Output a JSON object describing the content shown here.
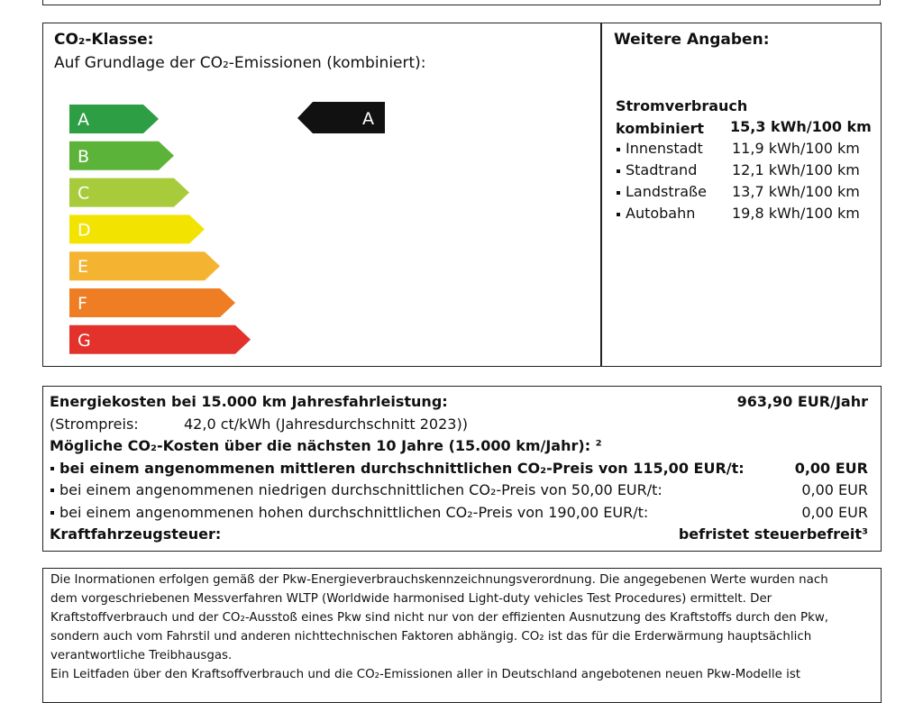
{
  "co2_class": {
    "title": "CO₂-Klasse:",
    "subtitle": "Auf Grundlage der CO₂-Emissionen (kombiniert):",
    "classes": [
      {
        "label": "A",
        "color": "#2e9e44"
      },
      {
        "label": "B",
        "color": "#5cb33a"
      },
      {
        "label": "C",
        "color": "#a8cb3b"
      },
      {
        "label": "D",
        "color": "#f2e300"
      },
      {
        "label": "E",
        "color": "#f4b431"
      },
      {
        "label": "F",
        "color": "#ee7d23"
      },
      {
        "label": "G",
        "color": "#e3312b"
      }
    ],
    "current_class": "A"
  },
  "further_info": {
    "title": "Weitere Angaben:",
    "consumption_title": "Stromverbrauch",
    "combined": {
      "label": "kombiniert",
      "value": "15,3 kWh/100 km"
    },
    "rows": [
      {
        "label": "Innenstadt",
        "value": "11,9 kWh/100 km"
      },
      {
        "label": "Stadtrand",
        "value": "12,1 kWh/100 km"
      },
      {
        "label": "Landstraße",
        "value": "13,7 kWh/100 km"
      },
      {
        "label": "Autobahn",
        "value": "19,8 kWh/100 km"
      }
    ]
  },
  "costs": {
    "rows": [
      {
        "label": "Energiekosten bei 15.000 km Jahresfahrleistung:",
        "value": "963,90 EUR/Jahr"
      },
      {
        "label": "(Strompreis:",
        "value": "42,0 ct/kWh (Jahresdurchschnitt 2023))"
      },
      {
        "label": "Mögliche CO₂-Kosten über die nächsten 10 Jahre (15.000 km/Jahr): ²"
      },
      {
        "label": "bei einem angenommenen mittleren durchschnittlichen CO₂-Preis von 115,00 EUR/t:",
        "value": "0,00 EUR"
      },
      {
        "label": "bei einem angenommenen niedrigen durchschnittlichen CO₂-Preis von 50,00 EUR/t:",
        "value": "0,00 EUR"
      },
      {
        "label": "bei einem angenommenen hohen durchschnittlichen CO₂-Preis von 190,00 EUR/t:",
        "value": "0,00 EUR"
      },
      {
        "label": "Kraftfahrzeugsteuer:",
        "value": "befristet steuerbefreit³"
      }
    ]
  },
  "notes": {
    "lines": [
      "Die Inormationen erfolgen gemäß der Pkw-Energieverbrauchskennzeichnungsverordnung. Die angegebenen Werte wurden nach",
      "dem vorgeschriebenen Messverfahren WLTP (Worldwide harmonised Light-duty vehicles Test Procedures) ermittelt. Der",
      "Kraftstoffverbrauch und der CO₂-Ausstoß eines Pkw sind nicht nur von der effizienten Ausnutzung des Kraftstoffs durch den Pkw,",
      "sondern auch vom Fahrstil und anderen nichttechnischen Faktoren abhängig. CO₂ ist das für die Erderwärmung hauptsächlich",
      "verantwortliche Treibhausgas.",
      "Ein Leitfaden über den Kraftsoffverbrauch und die CO₂-Emissionen aller in Deutschland angebotenen neuen Pkw-Modelle ist"
    ]
  }
}
